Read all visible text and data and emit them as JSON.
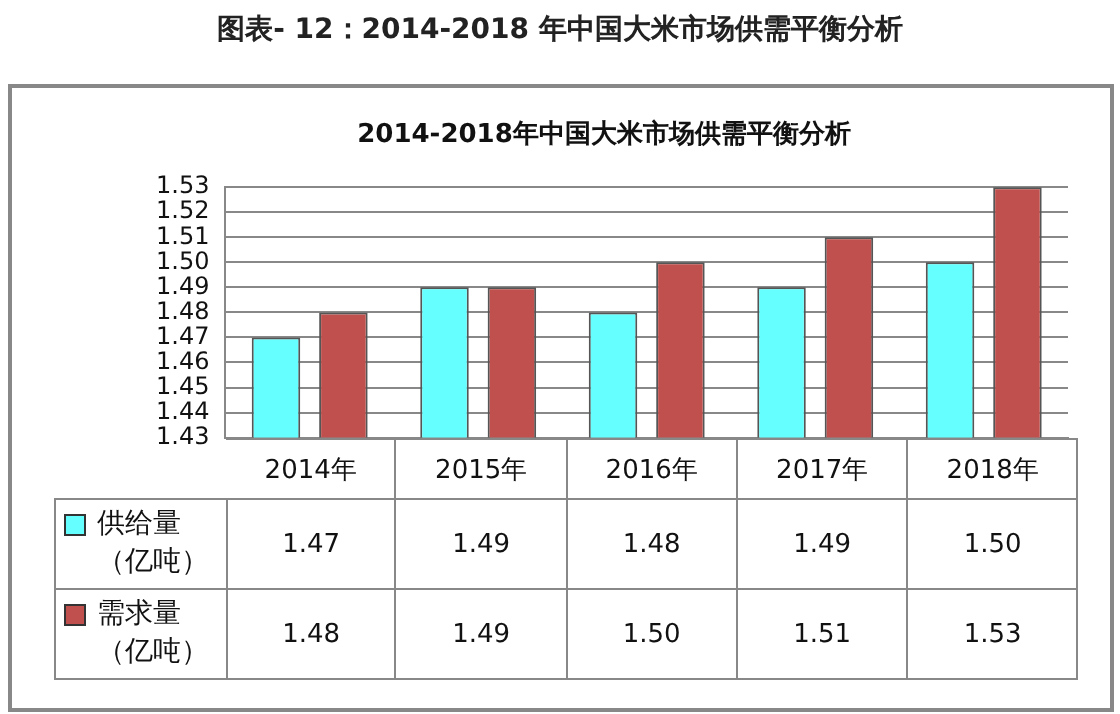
{
  "chart_data": {
    "type": "bar",
    "title": "图表- 12：2014-2018 年中国大米市场供需平衡分析",
    "subtitle": "2014-2018年中国大米市场供需平衡分析",
    "categories": [
      "2014年",
      "2015年",
      "2016年",
      "2017年",
      "2018年"
    ],
    "series": [
      {
        "name": "供给量（亿吨）",
        "color": "#66ffff",
        "values": [
          1.47,
          1.49,
          1.48,
          1.49,
          1.5
        ],
        "value_labels": [
          "1.47",
          "1.49",
          "1.48",
          "1.49",
          "1.50"
        ]
      },
      {
        "name": "需求量（亿吨）",
        "color": "#c0504d",
        "values": [
          1.48,
          1.49,
          1.5,
          1.51,
          1.53
        ],
        "value_labels": [
          "1.48",
          "1.49",
          "1.50",
          "1.51",
          "1.53"
        ]
      }
    ],
    "ylim": [
      1.43,
      1.53
    ],
    "yticks": [
      1.43,
      1.44,
      1.45,
      1.46,
      1.47,
      1.48,
      1.49,
      {
        "value": 1.5,
        "label": "1.50"
      },
      1.51,
      1.52,
      1.53
    ],
    "grid": "y",
    "legend": "bottom"
  }
}
